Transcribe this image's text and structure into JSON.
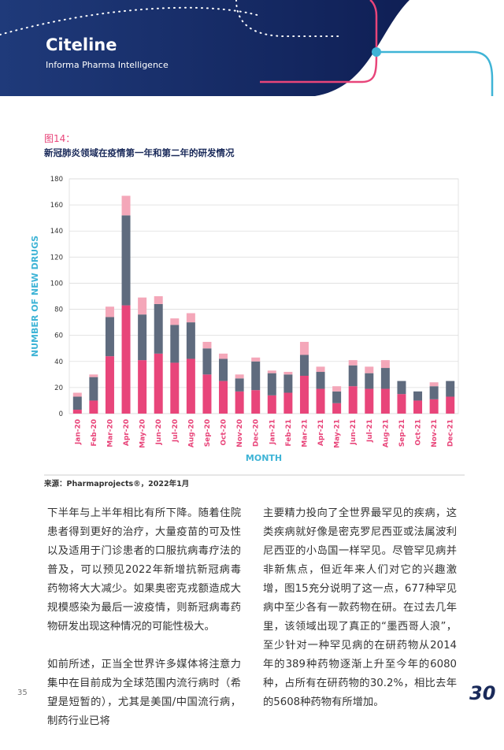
{
  "header": {
    "logo": "Citeline",
    "tagline": "Informa Pharma Intelligence"
  },
  "figure": {
    "label": "图14：",
    "source": "来源：Pharmaprojects®，2022年1月"
  },
  "chart_data": {
    "type": "stacked_bar",
    "title": "新冠肺炎领域在疫情第一年和第二年的研发情况",
    "x_label": "MONTH",
    "y_label": "NUMBER OF NEW DRUGS",
    "categories": [
      "Jan-20",
      "Feb-20",
      "Mar-20",
      "Apr-20",
      "May-20",
      "Jun-20",
      "Jul-20",
      "Aug-20",
      "Sep-20",
      "Oct-20",
      "Nov-20",
      "Dec-20",
      "Jan-21",
      "Feb-21",
      "Mar-21",
      "Apr-21",
      "May-21",
      "Jun-21",
      "Jul-21",
      "Aug-21",
      "Sep-21",
      "Oct-21",
      "Nov-21",
      "Dec-21"
    ],
    "series": [
      {
        "color": "#e8457a",
        "values": [
          3,
          10,
          44,
          83,
          41,
          46,
          39,
          42,
          30,
          25,
          17,
          18,
          14,
          16,
          29,
          19,
          8,
          21,
          19,
          19,
          15,
          10,
          11,
          13
        ]
      },
      {
        "color": "#5f6b7e",
        "values": [
          10,
          18,
          30,
          69,
          35,
          38,
          29,
          28,
          20,
          17,
          10,
          22,
          17,
          14,
          16,
          13,
          9,
          16,
          12,
          16,
          10,
          7,
          10,
          12
        ]
      },
      {
        "color": "#f4a7b9",
        "values": [
          3,
          2,
          8,
          15,
          13,
          6,
          5,
          7,
          5,
          4,
          3,
          3,
          2,
          2,
          10,
          4,
          4,
          4,
          5,
          6,
          0,
          0,
          3,
          0
        ]
      }
    ],
    "ylim": [
      0,
      180
    ],
    "yticks": [
      0,
      20,
      40,
      60,
      80,
      100,
      120,
      140,
      160,
      180
    ],
    "grid": true
  },
  "body": {
    "left": [
      "下半年与上半年相比有所下降。随着住院患者得到更好的治疗，大量疫苗的可及性以及适用于门诊患者的口服抗病毒疗法的普及，可以预见2022年新增抗新冠病毒药物将大大减少。如果奥密克戎额造成大规模感染为最后一波疫情，则新冠病毒药物研发出现这种情况的可能性极大。",
      "如前所述，正当全世界许多媒体将注意力集中在目前成为全球范围内流行病时（希望是短暂的），尤其是美国/中国流行病，制药行业已将"
    ],
    "right": [
      "主要精力投向了全世界最罕见的疾病，这类疾病就好像是密克罗尼西亚或法属波利尼西亚的小岛国一样罕见。尽管罕见病并非新焦点，但近年来人们对它的兴趣激增，图15充分说明了这一点，677种罕见病中至少各有一款药物在研。在过去几年里，该领域出现了真正的“墨西哥人浪”，至少针对一种罕见病的在研药物从2014年的389种药物逐渐上升至今年的6080种，占所有在研药物的30.2%，相比去年的5608种药物有所增加。"
    ]
  },
  "footer": {
    "page_number": "35",
    "logo": "30"
  }
}
